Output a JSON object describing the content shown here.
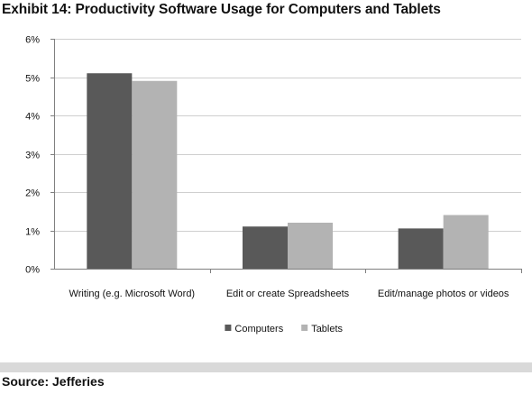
{
  "chart_data": {
    "type": "bar",
    "title": "Exhibit 14: Productivity Software Usage for Computers and Tablets",
    "categories": [
      "Writing (e.g. Microsoft Word)",
      "Edit or create Spreadsheets",
      "Edit/manage photos or videos"
    ],
    "series": [
      {
        "name": "Computers",
        "color": "#595959",
        "values": [
          5.1,
          1.1,
          1.05
        ]
      },
      {
        "name": "Tablets",
        "color": "#b3b3b3",
        "values": [
          4.9,
          1.2,
          1.4
        ]
      }
    ],
    "ylim": [
      0,
      6
    ],
    "yticks": [
      0,
      1,
      2,
      3,
      4,
      5,
      6
    ],
    "ytick_labels": [
      "0%",
      "1%",
      "2%",
      "3%",
      "4%",
      "5%",
      "6%"
    ],
    "xlabel": "",
    "ylabel": "",
    "grid": true,
    "legend_position": "bottom"
  },
  "source": "Source: Jefferies"
}
